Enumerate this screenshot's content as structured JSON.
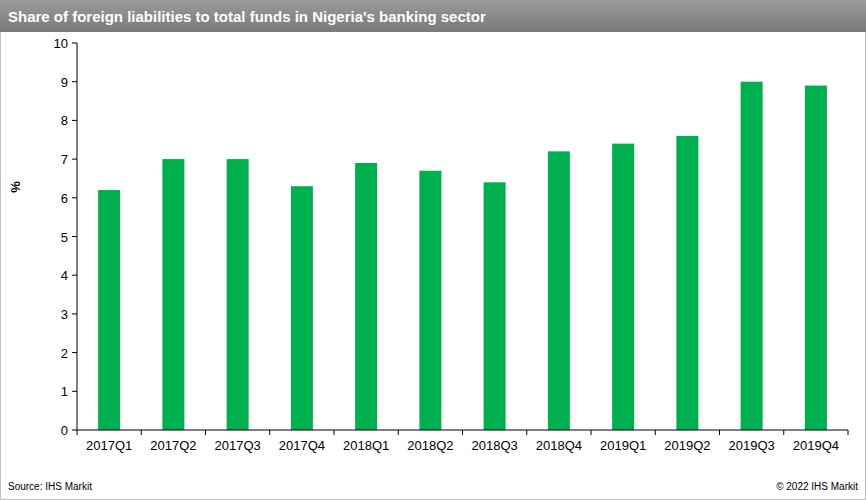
{
  "chart_data": {
    "type": "bar",
    "title": "Share of foreign liabilities to total funds in Nigeria's banking sector",
    "y_label": "%",
    "annotations": [
      "Source: IHS Markit",
      "© 2022 IHS Markit"
    ],
    "categories": [
      "2017Q1",
      "2017Q2",
      "2017Q3",
      "2017Q4",
      "2018Q1",
      "2018Q2",
      "2018Q3",
      "2018Q4",
      "2019Q1",
      "2019Q2",
      "2019Q3",
      "2019Q4"
    ],
    "values": [
      6.2,
      7.0,
      7.0,
      6.3,
      6.9,
      6.7,
      6.4,
      7.2,
      7.4,
      7.6,
      9.0,
      8.9
    ],
    "color": "#00b04f",
    "ylim": [
      0,
      10
    ],
    "yticks": [
      0,
      1,
      2,
      3,
      4,
      5,
      6,
      7,
      8,
      9,
      10
    ],
    "grid": false
  }
}
